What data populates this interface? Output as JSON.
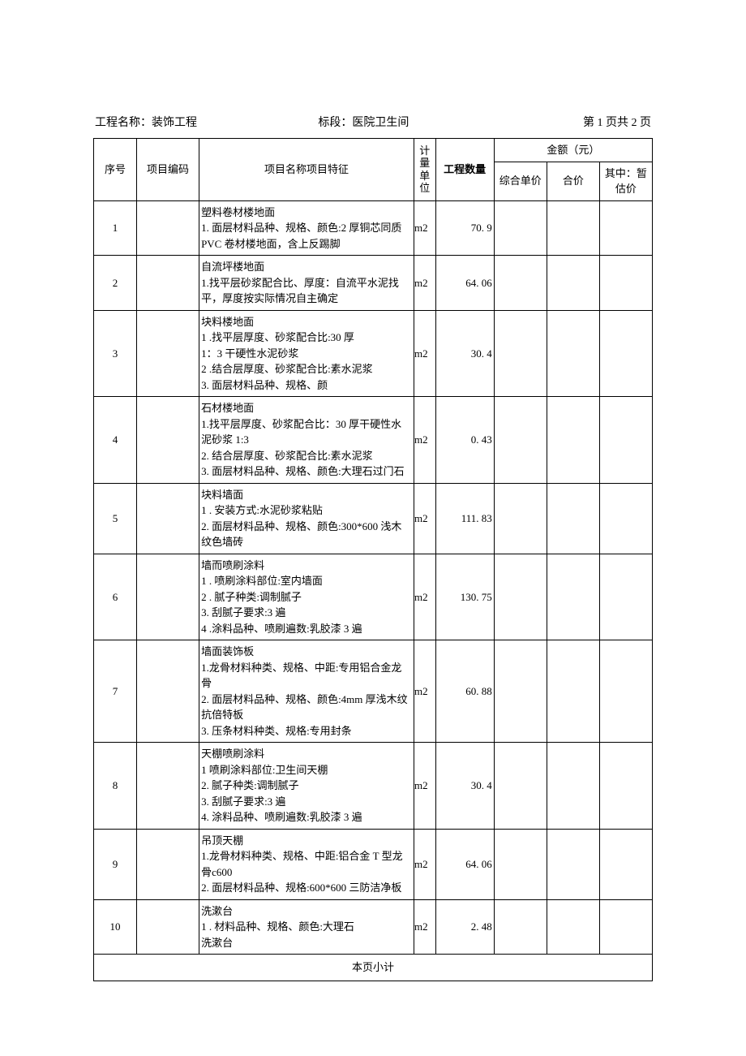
{
  "header": {
    "project_label": "工程名称：",
    "project_name": "装饰工程",
    "section_label": "标段：",
    "section_name": "医院卫生间",
    "page_info": "第 1 页共 2 页"
  },
  "columns": {
    "seq": "序号",
    "code": "项目编码",
    "desc": "项目名称项目特征",
    "unit": "计量单位",
    "qty": "工程数量",
    "amount_group": "金额（元）",
    "price": "综合单价",
    "total": "合价",
    "prov": "其中：暂估价"
  },
  "rows": [
    {
      "seq": "1",
      "code": "",
      "desc": "塑料卷材楼地面\n1. 面层材料品种、规格、颜色:2 厚铜芯同质 PVC 卷材楼地面，含上反踢脚",
      "unit": "m2",
      "qty": "70. 9",
      "price": "",
      "total": "",
      "prov": ""
    },
    {
      "seq": "2",
      "code": "",
      "desc": "自流坪楼地面\n1.找平层砂浆配合比、厚度：自流平水泥找平，厚度按实际情况自主确定",
      "unit": "m2",
      "qty": "64. 06",
      "price": "",
      "total": "",
      "prov": ""
    },
    {
      "seq": "3",
      "code": "",
      "desc": "块料楼地面\n1            .找平层厚度、砂浆配合比:30 厚\n1：3 干硬性水泥砂浆\n2            .结合层厚度、砂浆配合比:素水泥浆\n3. 面层材料品种、规格、颜",
      "unit": "m2",
      "qty": "30. 4",
      "price": "",
      "total": "",
      "prov": ""
    },
    {
      "seq": "4",
      "code": "",
      "desc": "石材楼地面\n1.找平层厚度、砂浆配合比：30 厚干硬性水泥砂浆 1:3\n2. 结合层厚度、砂浆配合比:素水泥浆\n3. 面层材料品种、规格、颜色:大理石过门石",
      "unit": "m2",
      "qty": "0. 43",
      "price": "",
      "total": "",
      "prov": ""
    },
    {
      "seq": "5",
      "code": "",
      "desc": "块料墙面\n1            . 安装方式:水泥砂浆粘贴\n2. 面层材料品种、规格、颜色:300*600 浅木纹色墙砖",
      "unit": "m2",
      "qty": "111. 83",
      "price": "",
      "total": "",
      "prov": ""
    },
    {
      "seq": "6",
      "code": "",
      "desc": "墙而喷刷涂料\n1            . 喷刷涂料部位:室内墙面\n2            . 腻子种类:调制腻子\n3. 刮腻子要求:3 遍\n4            .涂料品种、喷刷遍数:乳胶漆 3 遍",
      "unit": "m2",
      "qty": "130. 75",
      "price": "",
      "total": "",
      "prov": ""
    },
    {
      "seq": "7",
      "code": "",
      "desc": "墙面装饰板\n1.龙骨材料种类、规格、中距:专用铝合金龙骨\n2. 面层材料品种、规格、颜色:4mm 厚浅木纹抗倍特板\n3. 压条材料种类、规格:专用封条",
      "unit": "m2",
      "qty": "60. 88",
      "price": "",
      "total": "",
      "prov": ""
    },
    {
      "seq": "8",
      "code": "",
      "desc": "天棚喷刷涂料\n1 喷刷涂料部位:卫生间天棚\n2. 腻子种类:调制腻子\n3. 刮腻子要求:3 遍\n4. 涂料品种、喷刷遍数:乳胶漆 3 遍\n",
      "unit": "m2",
      "qty": "30. 4",
      "price": "",
      "total": "",
      "prov": ""
    },
    {
      "seq": "9",
      "code": "",
      "desc": "吊顶天棚\n1.龙骨材料种类、规格、中距:铝合金 T 型龙骨c600\n2. 面层材料品种、规格:600*600 三防洁净板",
      "unit": "m2",
      "qty": "64. 06",
      "price": "",
      "total": "",
      "prov": ""
    },
    {
      "seq": "10",
      "code": "",
      "desc": "洗漱台\n1            . 材料品种、规格、颜色:大理石\n洗漱台",
      "unit": "m2",
      "qty": "2. 48",
      "price": "",
      "total": "",
      "prov": ""
    }
  ],
  "subtotal_label": "本页小计",
  "colors": {
    "background": "#ffffff",
    "border": "#000000",
    "text": "#000000"
  },
  "typography": {
    "body_fontsize": 14,
    "table_fontsize": 13,
    "font_family": "SimSun"
  }
}
